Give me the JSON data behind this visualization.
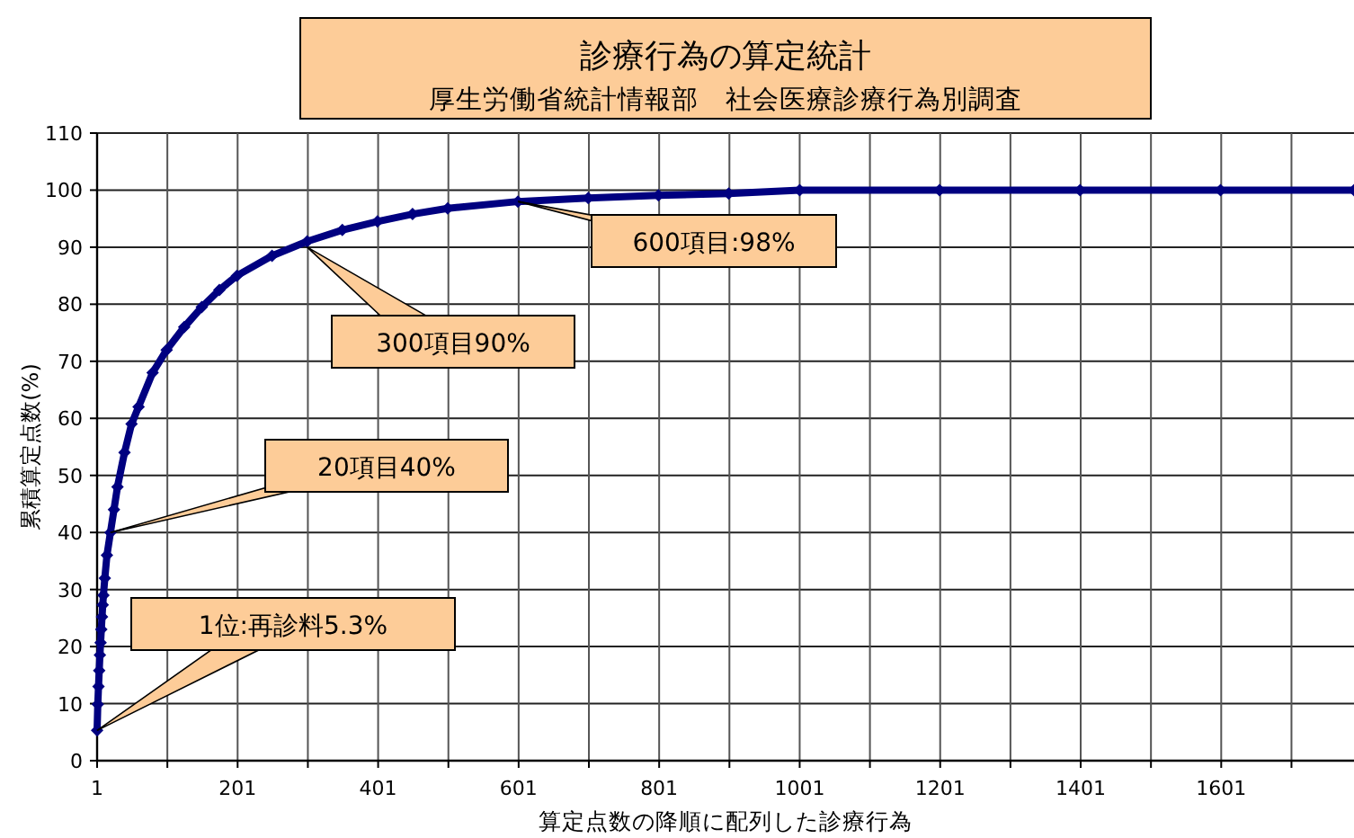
{
  "chart_data": {
    "type": "line",
    "title": "診療行為の算定統計",
    "subtitle": "厚生労働省統計情報部　社会医療診療行為別調査",
    "xlabel": "算定点数の降順に配列した診療行為",
    "ylabel": "累積算定点数(%)",
    "series": [
      {
        "color": "#000080",
        "x": [
          1,
          2,
          3,
          4,
          5,
          6,
          7,
          8,
          9,
          10,
          12,
          15,
          20,
          25,
          30,
          40,
          50,
          60,
          80,
          100,
          125,
          150,
          175,
          200,
          250,
          300,
          350,
          400,
          450,
          500,
          600,
          700,
          800,
          900,
          1001,
          1200,
          1400,
          1600,
          1790
        ],
        "values": [
          5.3,
          9.9,
          13,
          15.8,
          18.5,
          20.7,
          23,
          25.2,
          27.3,
          29,
          32,
          36,
          40,
          44,
          48,
          54,
          59,
          62,
          68,
          72,
          76,
          79.5,
          82.5,
          85,
          88.5,
          91,
          93,
          94.5,
          95.8,
          96.8,
          98,
          98.6,
          99.1,
          99.4,
          100,
          100,
          100,
          100,
          100
        ]
      }
    ],
    "xlim": [
      1,
      1790
    ],
    "ylim": [
      0,
      110
    ],
    "xticks": [
      1,
      {
        "value": 101,
        "label": null
      },
      201,
      {
        "value": 301,
        "label": null
      },
      401,
      {
        "value": 501,
        "label": null
      },
      601,
      {
        "value": 701,
        "label": null
      },
      801,
      {
        "value": 901,
        "label": null
      },
      1001,
      {
        "value": 1101,
        "label": null
      },
      1201,
      {
        "value": 1301,
        "label": null
      },
      1401,
      {
        "value": 1501,
        "label": null
      },
      1601,
      {
        "value": 1701,
        "label": null
      }
    ],
    "yticks": [
      0,
      10,
      20,
      30,
      40,
      50,
      60,
      70,
      80,
      90,
      100,
      110
    ],
    "grid": true,
    "marker": "diamond",
    "line_style": "solid",
    "annotations": [
      {
        "text": "1位:再診料5.3%",
        "x": 1,
        "y": 5.3
      },
      {
        "text": "20項目40%",
        "x": 20,
        "y": 40
      },
      {
        "text": "300項目90%",
        "x": 300,
        "y": 90
      },
      {
        "text": "600項目:98%",
        "x": 600,
        "y": 98
      }
    ]
  }
}
